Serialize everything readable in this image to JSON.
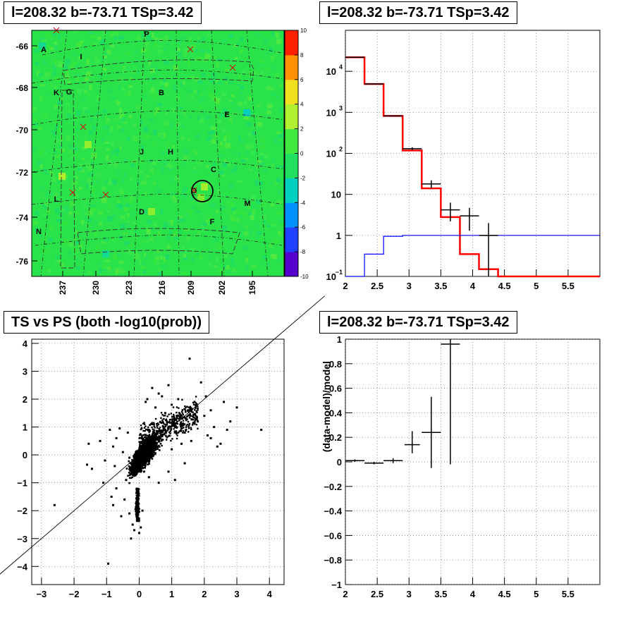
{
  "chart_data": [
    {
      "type": "heatmap",
      "title": "l=208.32 b=-73.71 TSp=3.42",
      "xlabel": "",
      "ylabel": "",
      "x_ticks": [
        "237",
        "230",
        "223",
        "216",
        "209",
        "202",
        "195"
      ],
      "y_ticks": [
        "-66",
        "-68",
        "-70",
        "-72",
        "-74",
        "-76"
      ],
      "z_range": [
        -10,
        10
      ],
      "z_ticks": [
        "10",
        "8",
        "6",
        "4",
        "2",
        "0",
        "-2",
        "-4",
        "-6",
        "-8",
        "-10"
      ],
      "colorscale": [
        "#5500cc",
        "#2040ff",
        "#0090ff",
        "#00d0c0",
        "#20e060",
        "#40e840",
        "#b0f030",
        "#f0e020",
        "#ff9000",
        "#ff2000"
      ],
      "background_color": "#2ae34a",
      "region_labels": [
        "A",
        "P",
        "I",
        "K",
        "G",
        "B",
        "E",
        "J",
        "H",
        "C",
        "O",
        "L",
        "D",
        "M",
        "F",
        "N"
      ],
      "crosses": 7,
      "circle_label": "O"
    },
    {
      "type": "line",
      "title": "l=208.32 b=-73.71 TSp=3.42",
      "xlabel": "",
      "ylabel": "",
      "xlim": [
        2,
        6
      ],
      "ylim": [
        0.1,
        100000
      ],
      "yscale": "log",
      "x_ticks": [
        "2",
        "2.5",
        "3",
        "3.5",
        "4",
        "4.5",
        "5",
        "5.5"
      ],
      "y_ticks": [
        {
          "v": 0.1,
          "m": "10",
          "e": "−1"
        },
        {
          "v": 1,
          "m": "1",
          "e": ""
        },
        {
          "v": 10,
          "m": "10",
          "e": ""
        },
        {
          "v": 100,
          "m": "10",
          "e": "2"
        },
        {
          "v": 1000,
          "m": "10",
          "e": "3"
        },
        {
          "v": 10000,
          "m": "10",
          "e": "4"
        }
      ],
      "grid": true,
      "bin_edges": [
        2.0,
        2.3,
        2.6,
        2.9,
        3.2,
        3.5,
        3.8,
        4.1,
        4.4,
        6.0
      ],
      "series": [
        {
          "color": "#ff0000",
          "values": [
            22000,
            4900,
            820,
            118,
            14,
            2.8,
            0.35,
            0.15,
            0.1
          ]
        },
        {
          "color": "#0000ff",
          "values": [
            0.1,
            0.35,
            0.95,
            1.0,
            1.0,
            1.0,
            1.0,
            1.0,
            1.0
          ]
        }
      ],
      "points": [
        {
          "x": 2.15,
          "y": 22000,
          "xerr": 0.15,
          "ylo": 21800,
          "yhi": 22200
        },
        {
          "x": 2.45,
          "y": 4900,
          "xerr": 0.15,
          "ylo": 4850,
          "yhi": 4950
        },
        {
          "x": 2.75,
          "y": 820,
          "xerr": 0.15,
          "ylo": 800,
          "yhi": 840
        },
        {
          "x": 3.05,
          "y": 130,
          "xerr": 0.15,
          "ylo": 120,
          "yhi": 141
        },
        {
          "x": 3.35,
          "y": 18,
          "xerr": 0.15,
          "ylo": 14,
          "yhi": 22
        },
        {
          "x": 3.65,
          "y": 4.2,
          "xerr": 0.15,
          "ylo": 2.2,
          "yhi": 6.3
        },
        {
          "x": 3.95,
          "y": 3.0,
          "xerr": 0.15,
          "ylo": 1.3,
          "yhi": 4.7
        },
        {
          "x": 4.25,
          "y": 1.0,
          "xerr": 0.15,
          "ylo": 0.1,
          "yhi": 2.0
        }
      ]
    },
    {
      "type": "scatter",
      "title": "TS vs PS (both -log10(prob))",
      "xlabel": "",
      "ylabel": "",
      "xlim": [
        -3.3,
        4.45
      ],
      "ylim": [
        -4.65,
        4.15
      ],
      "x_ticks": [
        -3,
        -2,
        -1,
        0,
        1,
        2,
        3,
        4
      ],
      "y_ticks": [
        -4,
        -3,
        -2,
        -1,
        0,
        1,
        2,
        3,
        4
      ],
      "grid": true,
      "reference_line": "y = x",
      "points": [
        [
          -2.6,
          -1.8
        ],
        [
          -1.6,
          -0.35
        ],
        [
          -1.55,
          0.4
        ],
        [
          -1.45,
          -0.5
        ],
        [
          -1.2,
          0.5
        ],
        [
          -1.1,
          -1.0
        ],
        [
          -1.05,
          -0.2
        ],
        [
          -0.95,
          -3.9
        ],
        [
          -0.9,
          0.9
        ],
        [
          -0.85,
          -1.5
        ],
        [
          -0.8,
          -1.8
        ],
        [
          -0.8,
          0.3
        ],
        [
          -0.75,
          -0.4
        ],
        [
          -0.7,
          0.6
        ],
        [
          -0.7,
          -1.2
        ],
        [
          -0.6,
          0.95
        ],
        [
          -0.55,
          -2.2
        ],
        [
          -0.5,
          0.1
        ],
        [
          -0.45,
          -1.6
        ],
        [
          -0.4,
          -0.9
        ],
        [
          -0.35,
          0.8
        ],
        [
          -0.3,
          -2.1
        ],
        [
          -0.25,
          -3.0
        ],
        [
          -0.2,
          -2.5
        ],
        [
          -0.15,
          -2.7
        ],
        [
          -0.1,
          -1.9
        ],
        [
          -0.05,
          -2.35
        ],
        [
          0.0,
          -2.8
        ],
        [
          0.05,
          -2.6
        ],
        [
          0.1,
          -2.0
        ],
        [
          0.2,
          1.9
        ],
        [
          0.25,
          2.0
        ],
        [
          0.3,
          -0.8
        ],
        [
          0.4,
          2.4
        ],
        [
          0.5,
          1.7
        ],
        [
          0.6,
          2.2
        ],
        [
          0.7,
          2.1
        ],
        [
          0.8,
          1.5
        ],
        [
          0.9,
          2.5
        ],
        [
          1.0,
          1.8
        ],
        [
          1.0,
          0.2
        ],
        [
          1.1,
          1.3
        ],
        [
          1.2,
          2.0
        ],
        [
          1.3,
          1.1
        ],
        [
          1.4,
          0.8
        ],
        [
          1.5,
          1.6
        ],
        [
          1.55,
          3.45
        ],
        [
          1.6,
          0.5
        ],
        [
          1.7,
          1.9
        ],
        [
          1.8,
          1.2
        ],
        [
          1.9,
          2.6
        ],
        [
          2.0,
          1.4
        ],
        [
          2.05,
          2.1
        ],
        [
          2.1,
          0.7
        ],
        [
          2.2,
          0.6
        ],
        [
          2.3,
          1.0
        ],
        [
          2.4,
          0.3
        ],
        [
          2.5,
          0.4
        ],
        [
          2.6,
          1.9
        ],
        [
          2.7,
          0.9
        ],
        [
          2.8,
          1.2
        ],
        [
          3.0,
          1.7
        ],
        [
          3.75,
          0.9
        ],
        [
          2.2,
          1.6
        ],
        [
          1.4,
          -0.3
        ],
        [
          0.9,
          -0.6
        ],
        [
          1.1,
          -0.9
        ],
        [
          0.6,
          -1.0
        ],
        [
          -0.3,
          -0.1
        ],
        [
          0.15,
          -0.6
        ],
        [
          0.8,
          0.9
        ],
        [
          1.3,
          0.4
        ]
      ],
      "dense_cloud_note": ""
    },
    {
      "type": "scatter",
      "title": "l=208.32 b=-73.71 TSp=3.42",
      "xlabel": "",
      "ylabel": "(data-model)/model",
      "xlim": [
        2,
        6
      ],
      "ylim": [
        -1,
        1
      ],
      "x_ticks": [
        "2",
        "2.5",
        "3",
        "3.5",
        "4",
        "4.5",
        "5",
        "5.5"
      ],
      "y_ticks": [
        -1,
        -0.8,
        -0.6,
        -0.4,
        -0.2,
        0,
        0.2,
        0.4,
        0.6,
        0.8,
        1
      ],
      "grid": true,
      "points": [
        {
          "x": 2.15,
          "y": 0.01,
          "xerr": 0.15,
          "ylo": 0.0,
          "yhi": 0.02
        },
        {
          "x": 2.45,
          "y": -0.01,
          "xerr": 0.15,
          "ylo": -0.02,
          "yhi": 0.0
        },
        {
          "x": 2.75,
          "y": 0.01,
          "xerr": 0.15,
          "ylo": -0.01,
          "yhi": 0.03
        },
        {
          "x": 3.05,
          "y": 0.14,
          "xerr": 0.12,
          "ylo": 0.07,
          "yhi": 0.25
        },
        {
          "x": 3.35,
          "y": 0.24,
          "xerr": 0.15,
          "ylo": -0.05,
          "yhi": 0.53
        },
        {
          "x": 3.65,
          "y": 0.96,
          "xerr": 0.15,
          "ylo": -0.02,
          "yhi": 1.0
        }
      ]
    }
  ]
}
